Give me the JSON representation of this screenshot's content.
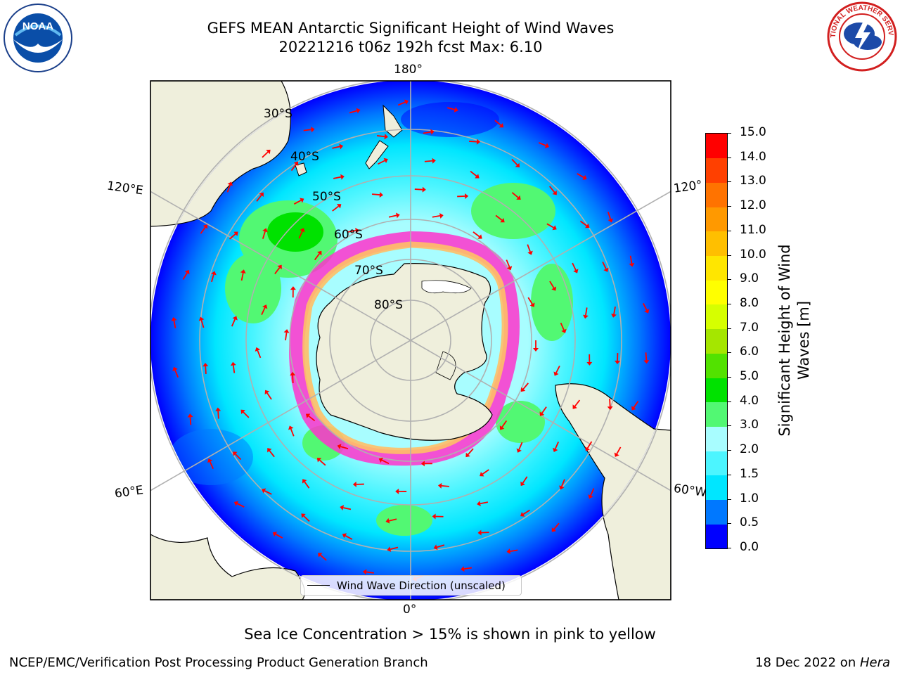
{
  "header": {
    "title_line1": "GEFS MEAN Antarctic Significant Height of Wind Waves",
    "title_line2": "20221216 t06z 192h fcst   Max: 6.10",
    "left_logo": "NOAA",
    "left_logo_ring_text": "NATIONAL OCEANIC AND ATMOSPHERIC ADMINISTRATION · U.S. DEPARTMENT OF COMMERCE",
    "right_logo_ring_text": "NATIONAL WEATHER SERVICE"
  },
  "map": {
    "projection": "south-polar stereographic",
    "longitude_labels": {
      "top": "180°",
      "bottom": "0°",
      "upper_left": "120°E",
      "upper_right": "120°",
      "lower_left": "60°E",
      "lower_right": "60°W"
    },
    "latitude_labels": [
      "30°S",
      "40°S",
      "50°S",
      "60°S",
      "70°S",
      "80°S"
    ],
    "legend_label": "Wind Wave Direction (unscaled)",
    "arrow_color": "#ff0000"
  },
  "colorbar": {
    "label_line1": "Significant Height of Wind",
    "label_line2": "Waves [m]",
    "ticks": [
      "0.0",
      "0.5",
      "1.0",
      "1.5",
      "2.0",
      "3.0",
      "4.0",
      "5.0",
      "6.0",
      "7.0",
      "8.0",
      "9.0",
      "10.0",
      "11.0",
      "12.0",
      "13.0",
      "14.0",
      "15.0"
    ],
    "colors": [
      "#0000ff",
      "#0078ff",
      "#00e6ff",
      "#4cf5ff",
      "#a8fdff",
      "#52f873",
      "#00e200",
      "#52e200",
      "#a5e600",
      "#d6ff00",
      "#ffff00",
      "#ffe600",
      "#ffbf00",
      "#ff9900",
      "#ff7300",
      "#ff4000",
      "#ff0000"
    ]
  },
  "caption": "Sea Ice Concentration > 15% is shown in pink to yellow",
  "footer": {
    "left": "NCEP/EMC/Verification Post Processing Product Generation Branch",
    "right_prefix": "18 Dec 2022 on ",
    "right_machine": "Hera"
  }
}
